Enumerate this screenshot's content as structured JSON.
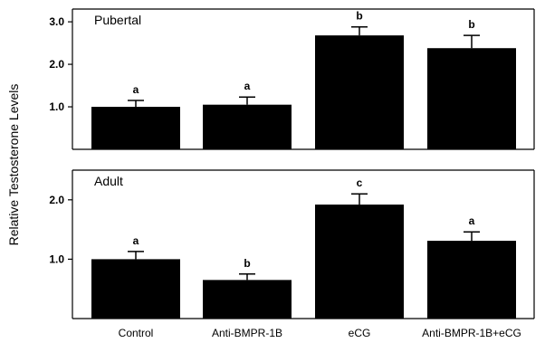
{
  "chart_data": [
    {
      "type": "bar",
      "panel_title": "Pubertal",
      "categories": [
        "Control",
        "Anti-BMPR-1B",
        "eCG",
        "Anti-BMPR-1B+eCG"
      ],
      "values": [
        1.0,
        1.05,
        2.68,
        2.38
      ],
      "errors": [
        0.15,
        0.18,
        0.2,
        0.3
      ],
      "significance": [
        "a",
        "a",
        "b",
        "b"
      ],
      "ylim": [
        0,
        3.3
      ],
      "yticks": [
        1.0,
        2.0,
        3.0
      ],
      "ytick_labels": [
        "1.0",
        "2.0",
        "3.0"
      ],
      "grid": false,
      "bar_color": "#000000"
    },
    {
      "type": "bar",
      "panel_title": "Adult",
      "categories": [
        "Control",
        "Anti-BMPR-1B",
        "eCG",
        "Anti-BMPR-1B+eCG"
      ],
      "values": [
        1.0,
        0.65,
        1.92,
        1.31
      ],
      "errors": [
        0.13,
        0.1,
        0.18,
        0.15
      ],
      "significance": [
        "a",
        "b",
        "c",
        "a"
      ],
      "ylim": [
        0,
        2.5
      ],
      "yticks": [
        1.0,
        2.0
      ],
      "ytick_labels": [
        "1.0",
        "2.0"
      ],
      "grid": false,
      "bar_color": "#000000"
    }
  ],
  "ylabel": "Relative Testosterone Levels",
  "xtick_labels": [
    "Control",
    "Anti-BMPR-1B",
    "eCG",
    "Anti-BMPR-1B+eCG"
  ]
}
